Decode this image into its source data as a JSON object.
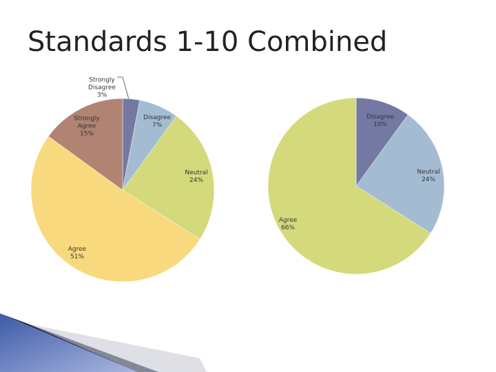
{
  "title": "Standards 1-10 Combined",
  "chart_data": [
    {
      "type": "pie",
      "categories": [
        "Strongly Disagree",
        "Disagree",
        "Neutral",
        "Agree",
        "Strongly Agree"
      ],
      "values": [
        3,
        7,
        24,
        51,
        15
      ],
      "value_labels": [
        "3%",
        "7%",
        "24%",
        "51%",
        "15%"
      ],
      "colors": [
        "#7479a3",
        "#a4bcd2",
        "#d4d97b",
        "#f8d97d",
        "#b08372"
      ]
    },
    {
      "type": "pie",
      "categories": [
        "Disagree",
        "Neutral",
        "Agree"
      ],
      "values": [
        10,
        24,
        66
      ],
      "value_labels": [
        "10%",
        "24%",
        "66%"
      ],
      "colors": [
        "#7479a3",
        "#a4bcd2",
        "#d4d97b"
      ]
    }
  ]
}
